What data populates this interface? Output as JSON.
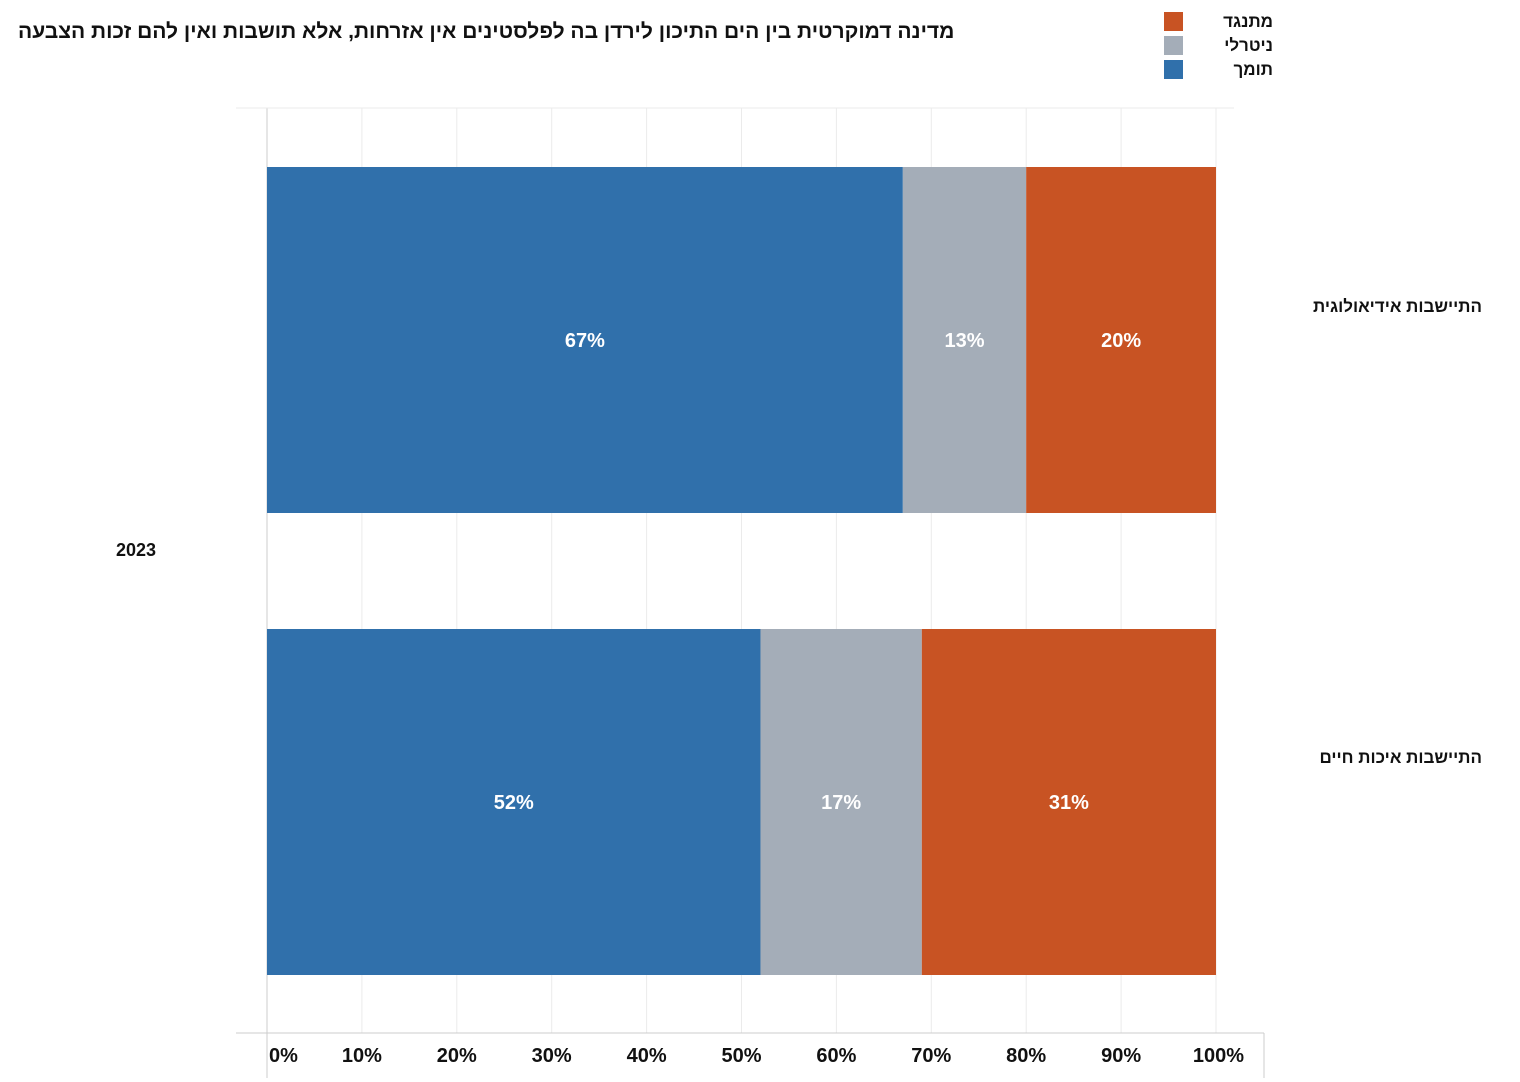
{
  "title": "מדינה דמוקרטית בין הים התיכון לירדן בה לפלסטינים אין אזרחות, אלא תושבות ואין להם זכות הצבעה",
  "legend": [
    {
      "label": "מתנגד",
      "color": "#c85323"
    },
    {
      "label": "ניטרלי",
      "color": "#a4adb8"
    },
    {
      "label": "תומך",
      "color": "#3070ab"
    }
  ],
  "chart_data": {
    "type": "bar",
    "orientation": "horizontal",
    "stacked": true,
    "group_label": "2023",
    "categories": [
      "התיישבות אידיאולוגית",
      "התיישבות איכות חיים"
    ],
    "series": [
      {
        "name": "תומך",
        "color": "#3070ab",
        "values": [
          67,
          52
        ],
        "labels": [
          "67%",
          "52%"
        ]
      },
      {
        "name": "ניטרלי",
        "color": "#a4adb8",
        "values": [
          13,
          17
        ],
        "labels": [
          "13%",
          "17%"
        ]
      },
      {
        "name": "מתנגד",
        "color": "#c85323",
        "values": [
          20,
          31
        ],
        "labels": [
          "20%",
          "31%"
        ]
      }
    ],
    "xlim": [
      0,
      100
    ],
    "xticks": [
      "0%",
      "10%",
      "20%",
      "30%",
      "40%",
      "50%",
      "60%",
      "70%",
      "80%",
      "90%",
      "100%"
    ],
    "grid": true,
    "legend_position": "top-right"
  }
}
